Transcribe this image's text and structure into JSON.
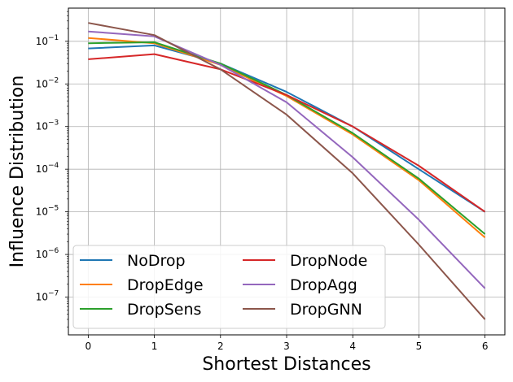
{
  "chart_data": {
    "type": "line",
    "xlabel": "Shortest Distances",
    "ylabel": "Influence Distribution",
    "x": [
      0,
      1,
      2,
      3,
      4,
      5,
      6
    ],
    "x_ticks": [
      "0",
      "1",
      "2",
      "3",
      "4",
      "5",
      "6"
    ],
    "y_scale": "log",
    "ylim": [
      1.3e-08,
      0.6
    ],
    "y_ticks": [
      {
        "value": 1e-07,
        "base": "10",
        "exp": "−7"
      },
      {
        "value": 1e-06,
        "base": "10",
        "exp": "−6"
      },
      {
        "value": 1e-05,
        "base": "10",
        "exp": "−5"
      },
      {
        "value": 0.0001,
        "base": "10",
        "exp": "−4"
      },
      {
        "value": 0.001,
        "base": "10",
        "exp": "−3"
      },
      {
        "value": 0.01,
        "base": "10",
        "exp": "−2"
      },
      {
        "value": 0.1,
        "base": "10",
        "exp": "−1"
      }
    ],
    "grid": true,
    "legend_position": "lower-left",
    "legend_columns": 2,
    "series": [
      {
        "name": "NoDrop",
        "color": "#1f77b4",
        "values": [
          0.068,
          0.08,
          0.03,
          0.0065,
          0.001,
          0.0001,
          1e-05
        ]
      },
      {
        "name": "DropEdge",
        "color": "#ff7f0e",
        "values": [
          0.12,
          0.09,
          0.028,
          0.0052,
          0.00065,
          5.5e-05,
          2.5e-06
        ]
      },
      {
        "name": "DropSens",
        "color": "#2ca02c",
        "values": [
          0.09,
          0.095,
          0.03,
          0.0055,
          0.0007,
          6e-05,
          3e-06
        ]
      },
      {
        "name": "DropNode",
        "color": "#d62728",
        "values": [
          0.038,
          0.05,
          0.022,
          0.0055,
          0.001,
          0.00012,
          1e-05
        ]
      },
      {
        "name": "DropAgg",
        "color": "#9467bd",
        "values": [
          0.17,
          0.13,
          0.028,
          0.0037,
          0.00019,
          6.5e-06,
          1.6e-07
        ]
      },
      {
        "name": "DropGNN",
        "color": "#8c564b",
        "values": [
          0.27,
          0.14,
          0.022,
          0.0019,
          8e-05,
          1.7e-06,
          3e-08
        ]
      }
    ]
  }
}
